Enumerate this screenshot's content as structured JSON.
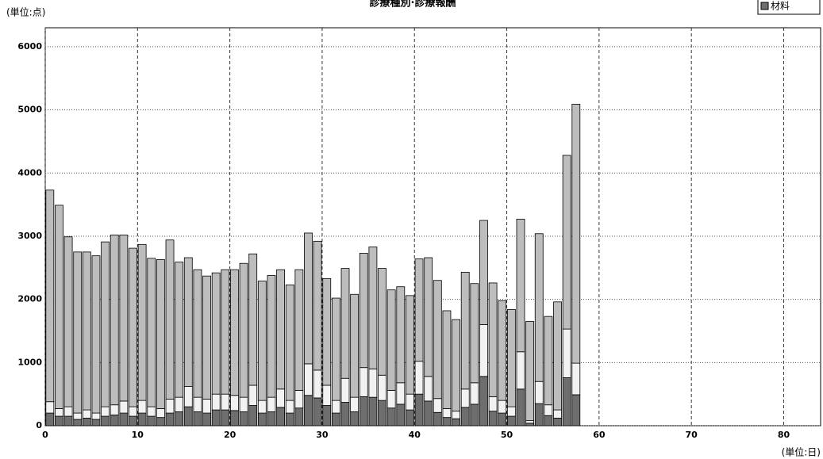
{
  "chart_data": {
    "type": "stacked_bar",
    "title": "診療種別·診療報酬",
    "y_unit": "(単位:点)",
    "x_unit": "(単位:日)",
    "x": [
      1,
      2,
      3,
      4,
      5,
      6,
      7,
      8,
      9,
      10,
      11,
      12,
      13,
      14,
      15,
      16,
      17,
      18,
      19,
      20,
      21,
      22,
      23,
      24,
      25,
      26,
      27,
      28,
      29,
      30,
      31,
      32,
      33,
      34,
      35,
      36,
      37,
      38,
      39,
      40,
      41,
      42,
      43,
      44,
      45,
      46,
      47,
      48,
      49,
      50,
      51,
      52,
      53,
      54,
      55,
      56,
      57,
      58
    ],
    "series": [
      {
        "name": "材料",
        "color": "#6e6e6e",
        "values": [
          200,
          150,
          150,
          100,
          120,
          100,
          150,
          170,
          200,
          150,
          200,
          150,
          130,
          200,
          220,
          300,
          220,
          200,
          250,
          250,
          240,
          220,
          320,
          200,
          220,
          290,
          200,
          280,
          480,
          440,
          320,
          200,
          370,
          220,
          460,
          450,
          400,
          280,
          340,
          250,
          500,
          390,
          210,
          130,
          110,
          290,
          340,
          780,
          230,
          200,
          150,
          580,
          40,
          350,
          160,
          120,
          760,
          490
        ]
      },
      {
        "color": "#f2f2f2",
        "values": [
          180,
          120,
          150,
          100,
          130,
          100,
          150,
          160,
          190,
          150,
          200,
          150,
          140,
          220,
          230,
          320,
          230,
          220,
          250,
          250,
          240,
          230,
          320,
          200,
          230,
          290,
          200,
          280,
          500,
          440,
          320,
          200,
          380,
          230,
          460,
          450,
          400,
          280,
          340,
          250,
          520,
          390,
          220,
          140,
          120,
          290,
          340,
          820,
          230,
          200,
          150,
          590,
          40,
          350,
          170,
          130,
          770,
          500
        ]
      },
      {
        "color": "#bdbdbd",
        "values": [
          3350,
          3220,
          2690,
          2550,
          2500,
          2490,
          2610,
          2690,
          2630,
          2510,
          2470,
          2350,
          2360,
          2520,
          2140,
          2040,
          2020,
          1950,
          1920,
          1970,
          1990,
          2120,
          2080,
          1890,
          1930,
          1890,
          1830,
          1910,
          2070,
          2040,
          1690,
          1620,
          1740,
          1630,
          1810,
          1930,
          1690,
          1590,
          1520,
          1560,
          1620,
          1880,
          1870,
          1550,
          1450,
          1850,
          1570,
          1650,
          1800,
          1580,
          1540,
          2100,
          1570,
          2340,
          1400,
          1710,
          2750,
          4100
        ]
      }
    ],
    "xlim": [
      0,
      84
    ],
    "xticks": [
      0,
      10,
      20,
      30,
      40,
      50,
      60,
      70,
      80
    ],
    "ylim": [
      0,
      6300
    ],
    "yticks": [
      0,
      1000,
      2000,
      3000,
      4000,
      5000,
      6000
    ],
    "grid": true
  }
}
